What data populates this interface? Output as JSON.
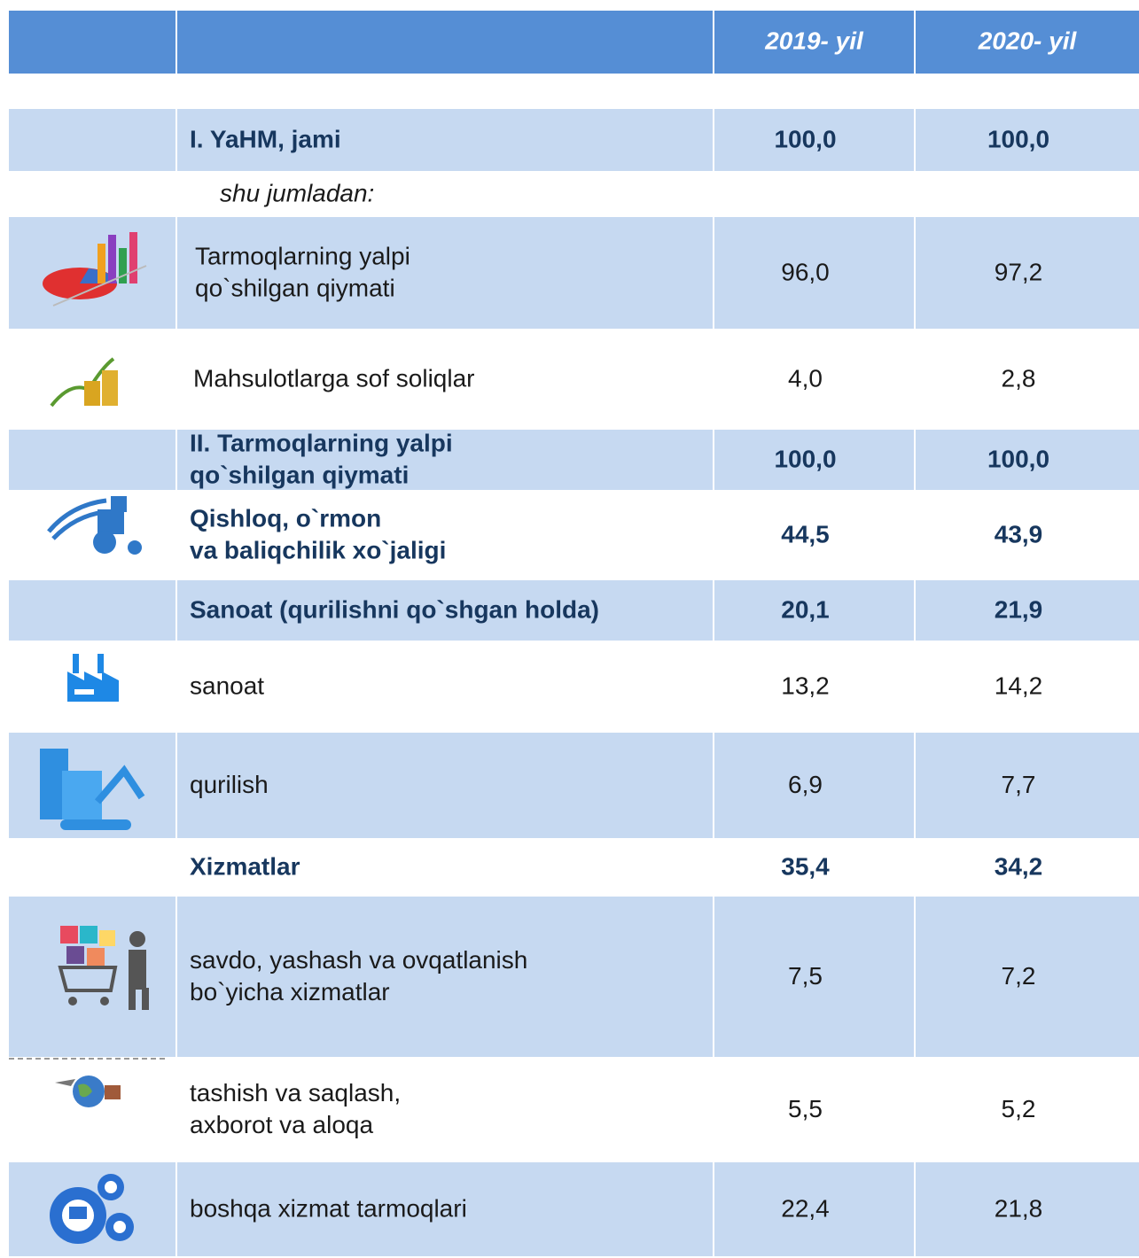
{
  "header": {
    "columns": [
      "2019- yil",
      "2020- yil"
    ]
  },
  "table": {
    "rows": [
      {
        "label": [
          "I. YaHM, jami"
        ],
        "values": [
          "100,0",
          "100,0"
        ]
      },
      {
        "label": [
          "shu jumladan:"
        ]
      },
      {
        "label": [
          "Tarmoqlarning yalpi",
          "qo`shilgan qiymati"
        ],
        "values": [
          "96,0",
          "97,2"
        ]
      },
      {
        "label": [
          "Mahsulotlarga sof soliqlar"
        ],
        "values": [
          "4,0",
          "2,8"
        ]
      },
      {
        "label": [
          "II. Tarmoqlarning yalpi",
          "qo`shilgan qiymati"
        ],
        "values": [
          "100,0",
          "100,0"
        ]
      },
      {
        "label": [
          "Qishloq, o`rmon",
          "va baliqchilik xo`jaligi"
        ],
        "values": [
          "44,5",
          "43,9"
        ]
      },
      {
        "label": [
          "Sanoat (qurilishni qo`shgan holda)"
        ],
        "values": [
          "20,1",
          "21,9"
        ]
      },
      {
        "label": [
          "sanoat"
        ],
        "values": [
          "13,2",
          "14,2"
        ]
      },
      {
        "label": [
          "qurilish"
        ],
        "values": [
          "6,9",
          "7,7"
        ]
      },
      {
        "label": [
          "Xizmatlar"
        ],
        "values": [
          "35,4",
          "34,2"
        ]
      },
      {
        "label": [
          "savdo, yashash va ovqatlanish",
          "bo`yicha xizmatlar"
        ],
        "values": [
          "7,5",
          "7,2"
        ]
      },
      {
        "label": [
          "tashish va saqlash,",
          "axborot va aloqa"
        ],
        "values": [
          "5,5",
          "5,2"
        ]
      },
      {
        "label": [
          "boshqa xizmat tarmoqlari"
        ],
        "values": [
          "22,4",
          "21,8"
        ]
      }
    ]
  }
}
